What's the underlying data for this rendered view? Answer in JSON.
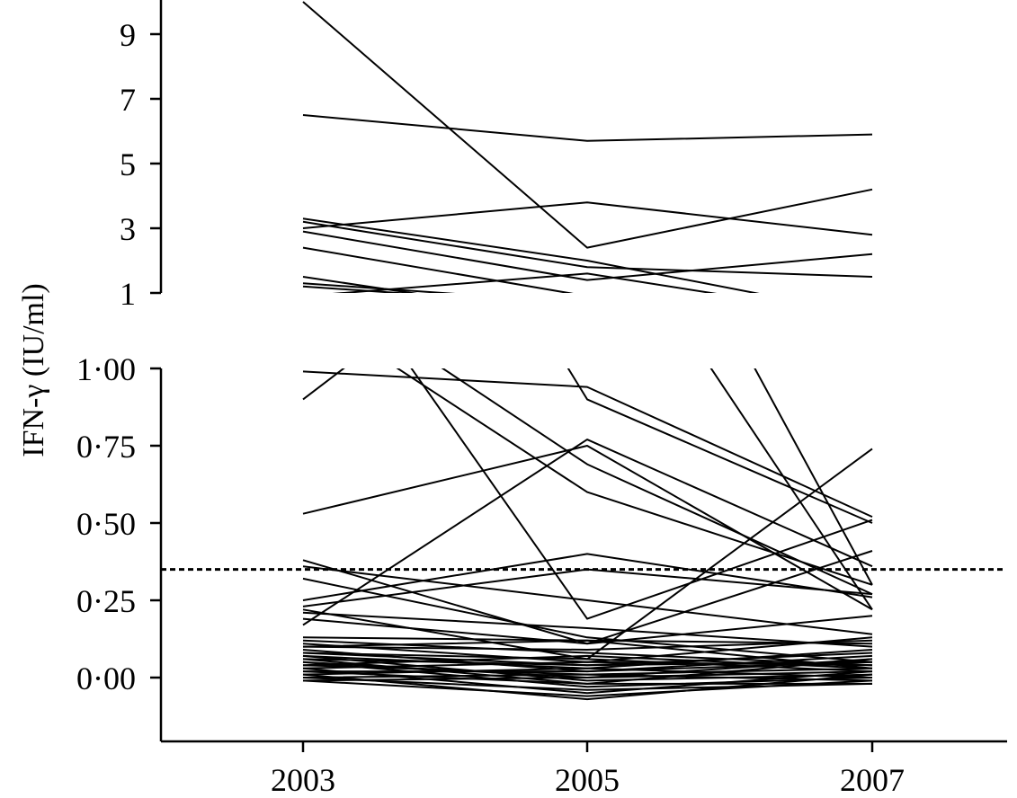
{
  "chart_data": {
    "type": "line",
    "ylabel": "IFN-γ (IU/ml)",
    "x": [
      2003,
      2005,
      2007
    ],
    "x_tick_labels": [
      "2003",
      "2005",
      "2007"
    ],
    "upper_panel": {
      "y_ticks": [
        1,
        3,
        5,
        7,
        9
      ],
      "y_tick_labels": [
        "1",
        "3",
        "5",
        "7",
        "9"
      ],
      "ylim": [
        1,
        10
      ]
    },
    "lower_panel": {
      "y_ticks": [
        0.0,
        0.25,
        0.5,
        0.75,
        1.0
      ],
      "y_tick_labels": [
        "0·00",
        "0·25",
        "0·50",
        "0·75",
        "1·00"
      ],
      "ylim": [
        -0.2,
        1.0
      ]
    },
    "threshold": 0.35,
    "grid": false,
    "series": [
      {
        "values": [
          10.0,
          2.4,
          4.2
        ]
      },
      {
        "values": [
          6.5,
          5.7,
          5.9
        ]
      },
      {
        "values": [
          3.0,
          3.8,
          2.8
        ]
      },
      {
        "values": [
          3.3,
          2.0,
          0.3
        ]
      },
      {
        "values": [
          3.2,
          1.8,
          1.5
        ]
      },
      {
        "values": [
          2.9,
          1.4,
          2.2
        ]
      },
      {
        "values": [
          2.4,
          0.9,
          0.5
        ]
      },
      {
        "values": [
          1.2,
          0.6,
          0.3
        ]
      },
      {
        "values": [
          0.99,
          0.94,
          0.52
        ]
      },
      {
        "values": [
          1.5,
          0.19,
          0.51
        ]
      },
      {
        "values": [
          1.3,
          0.69,
          0.27
        ]
      },
      {
        "values": [
          0.9,
          1.6,
          0.22
        ]
      },
      {
        "values": [
          0.53,
          0.75,
          0.22
        ]
      },
      {
        "values": [
          0.17,
          0.77,
          0.36
        ]
      },
      {
        "values": [
          0.22,
          0.06,
          0.74
        ]
      },
      {
        "values": [
          0.38,
          0.11,
          0.41
        ]
      },
      {
        "values": [
          0.25,
          0.4,
          0.26
        ]
      },
      {
        "values": [
          0.23,
          0.35,
          0.27
        ]
      },
      {
        "values": [
          0.36,
          0.25,
          0.14
        ]
      },
      {
        "values": [
          0.32,
          0.13,
          0.05
        ]
      },
      {
        "values": [
          0.21,
          0.16,
          0.1
        ]
      },
      {
        "values": [
          0.19,
          0.11,
          0.2
        ]
      },
      {
        "values": [
          0.13,
          0.12,
          0.11
        ]
      },
      {
        "values": [
          0.12,
          0.08,
          0.04
        ]
      },
      {
        "values": [
          0.11,
          0.05,
          0.13
        ]
      },
      {
        "values": [
          0.1,
          0.12,
          0.03
        ]
      },
      {
        "values": [
          0.09,
          0.02,
          0.07
        ]
      },
      {
        "values": [
          0.08,
          0.06,
          0.02
        ]
      },
      {
        "values": [
          0.07,
          0.03,
          0.09
        ]
      },
      {
        "values": [
          0.07,
          -0.01,
          0.01
        ]
      },
      {
        "values": [
          0.06,
          0.04,
          0.05
        ]
      },
      {
        "values": [
          0.05,
          0.0,
          0.06
        ]
      },
      {
        "values": [
          0.05,
          -0.03,
          0.0
        ]
      },
      {
        "values": [
          0.04,
          0.07,
          0.03
        ]
      },
      {
        "values": [
          0.04,
          0.01,
          -0.01
        ]
      },
      {
        "values": [
          0.03,
          -0.05,
          0.02
        ]
      },
      {
        "values": [
          0.03,
          0.05,
          0.04
        ]
      },
      {
        "values": [
          0.02,
          -0.02,
          -0.02
        ]
      },
      {
        "values": [
          0.02,
          0.02,
          0.05
        ]
      },
      {
        "values": [
          0.01,
          -0.07,
          0.01
        ]
      },
      {
        "values": [
          0.01,
          0.03,
          0.0
        ]
      },
      {
        "values": [
          0.0,
          -0.04,
          -0.02
        ]
      },
      {
        "values": [
          0.0,
          0.01,
          0.03
        ]
      },
      {
        "values": [
          -0.01,
          -0.06,
          -0.01
        ]
      },
      {
        "values": [
          -0.01,
          0.0,
          0.02
        ]
      },
      {
        "values": [
          0.06,
          -0.02,
          0.06
        ]
      },
      {
        "values": [
          0.08,
          0.04,
          0.08
        ]
      },
      {
        "values": [
          0.1,
          0.09,
          0.12
        ]
      }
    ]
  }
}
